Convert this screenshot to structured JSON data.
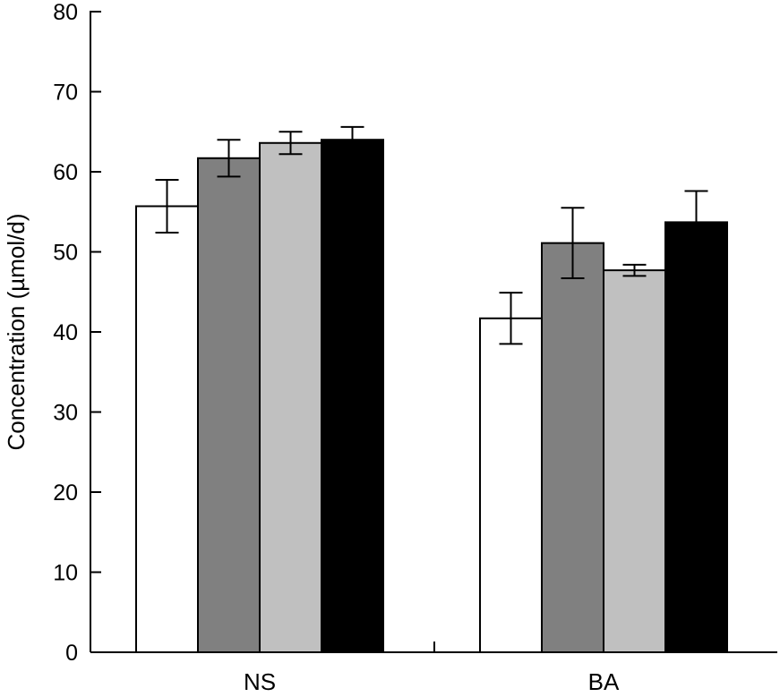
{
  "chart_data": {
    "type": "bar",
    "ylabel": "Concentration (µmol/d)",
    "xlabel": "",
    "ylim": [
      0,
      80
    ],
    "yticks": [
      0,
      10,
      20,
      30,
      40,
      50,
      60,
      70,
      80
    ],
    "categories": [
      "NS",
      "BA"
    ],
    "grid": false,
    "legend": "none",
    "series": [
      {
        "color": "#ffffff",
        "values": [
          55.7,
          41.7
        ],
        "errors": [
          3.3,
          3.2
        ]
      },
      {
        "color": "#808080",
        "values": [
          61.7,
          51.1
        ],
        "errors": [
          2.3,
          4.4
        ]
      },
      {
        "color": "#c0c0c0",
        "values": [
          63.6,
          47.7
        ],
        "errors": [
          1.4,
          0.7
        ]
      },
      {
        "color": "#000000",
        "values": [
          64.0,
          53.7
        ],
        "errors": [
          1.6,
          3.9
        ]
      }
    ]
  }
}
